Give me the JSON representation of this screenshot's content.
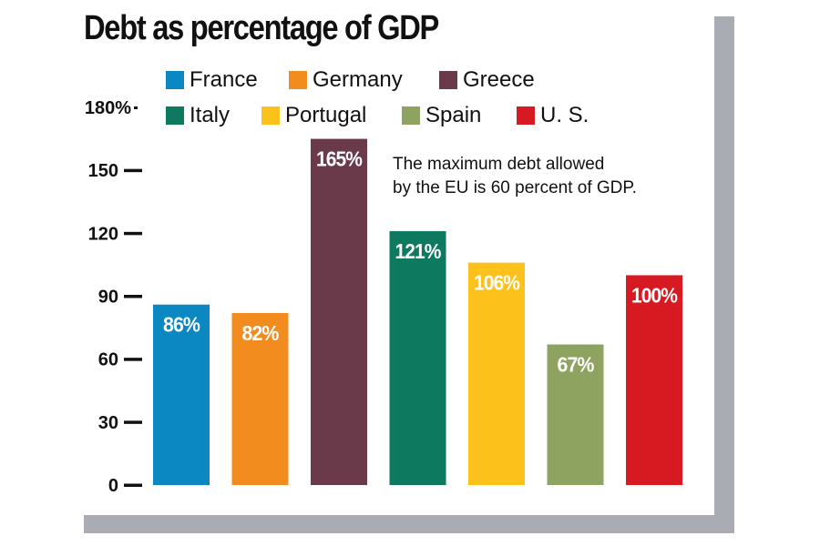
{
  "chart_data": {
    "type": "bar",
    "title": "Debt as percentage of GDP",
    "categories": [
      "France",
      "Germany",
      "Greece",
      "Italy",
      "Portugal",
      "Spain",
      "U. S."
    ],
    "values": [
      86,
      82,
      165,
      121,
      106,
      67,
      100
    ],
    "value_labels": [
      "86%",
      "82%",
      "165%",
      "121%",
      "106%",
      "67%",
      "100%"
    ],
    "colors": [
      "#0b88c2",
      "#f28c1e",
      "#6b3a4a",
      "#0d7a5f",
      "#fcc21b",
      "#8ea35f",
      "#d71a21"
    ],
    "ylim": [
      0,
      180
    ],
    "yticks": [
      0,
      30,
      60,
      90,
      120,
      150,
      180
    ],
    "ytick_labels": [
      "0",
      "30",
      "60",
      "90",
      "120",
      "150",
      "180%"
    ],
    "xlabel": "",
    "ylabel": "",
    "legend": [
      {
        "label": "France",
        "color": "#0b88c2"
      },
      {
        "label": "Germany",
        "color": "#f28c1e"
      },
      {
        "label": "Greece",
        "color": "#6b3a4a"
      },
      {
        "label": "Italy",
        "color": "#0d7a5f"
      },
      {
        "label": "Portugal",
        "color": "#fcc21b"
      },
      {
        "label": "Spain",
        "color": "#8ea35f"
      },
      {
        "label": "U. S.",
        "color": "#d71a21"
      }
    ],
    "legend_placement": "top",
    "grid": false,
    "annotation": "The maximum debt allowed by the EU is 60 percent of GDP.",
    "annotation_lines": [
      "The maximum debt allowed",
      "by the EU is 60 percent of GDP."
    ]
  }
}
